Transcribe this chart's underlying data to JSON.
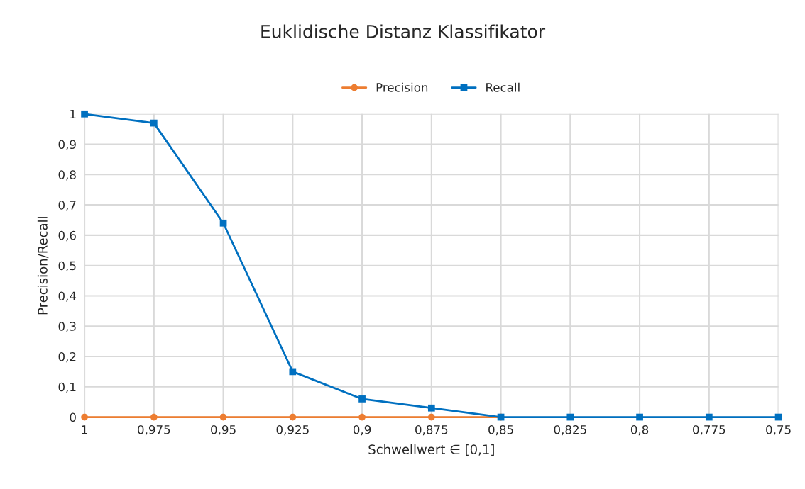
{
  "chart_data": {
    "type": "line",
    "title": "Euklidische Distanz Klassifikator",
    "xlabel": "Schwellwert ∈ [0,1]",
    "ylabel": "Precision/Recall",
    "categories": [
      "1",
      "0,975",
      "0,95",
      "0,925",
      "0,9",
      "0,875",
      "0,85",
      "0,825",
      "0,8",
      "0,775",
      "0,75"
    ],
    "series": [
      {
        "name": "Precision",
        "color": "#ed7d31",
        "marker": "circle",
        "values": [
          0,
          0,
          0,
          0,
          0,
          0,
          0,
          null,
          null,
          null,
          null
        ]
      },
      {
        "name": "Recall",
        "color": "#0070c0",
        "marker": "square",
        "values": [
          1,
          0.97,
          0.64,
          0.15,
          0.06,
          0.03,
          0,
          0,
          0,
          0,
          0
        ]
      }
    ],
    "ylim": [
      0,
      1
    ],
    "yticks": [
      {
        "value": 0,
        "label": "0"
      },
      {
        "value": 0.1,
        "label": "0,1"
      },
      {
        "value": 0.2,
        "label": "0,2"
      },
      {
        "value": 0.3,
        "label": "0,3"
      },
      {
        "value": 0.4,
        "label": "0,4"
      },
      {
        "value": 0.5,
        "label": "0,5"
      },
      {
        "value": 0.6,
        "label": "0,6"
      },
      {
        "value": 0.7,
        "label": "0,7"
      },
      {
        "value": 0.8,
        "label": "0,8"
      },
      {
        "value": 0.9,
        "label": "0,9"
      },
      {
        "value": 1,
        "label": "1"
      }
    ],
    "grid": true,
    "legend": "top",
    "line_style": "solid"
  }
}
